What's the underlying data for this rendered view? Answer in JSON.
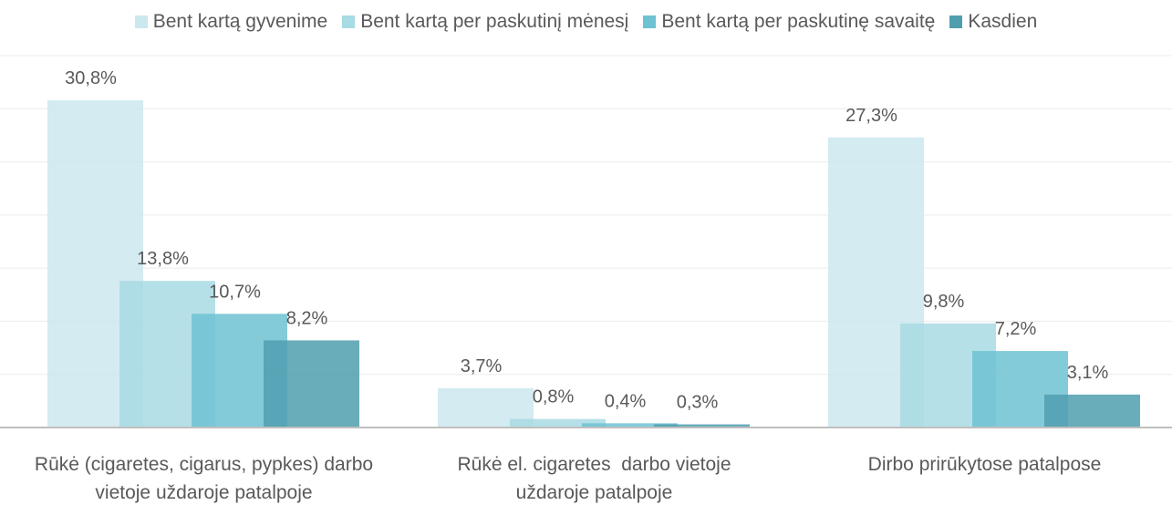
{
  "chart_data": {
    "type": "bar",
    "categories": [
      "Rūkė (cigaretes, cigarus, pypkes) darbo vietoje uždaroje patalpoje",
      "Rūkė el. cigaretes  darbo vietoje uždaroje patalpoje",
      "Dirbo prirūkytose patalpose"
    ],
    "series": [
      {
        "name": "Bent kartą gyvenime",
        "color": "#cbe8ee",
        "values": [
          30.8,
          3.7,
          27.3
        ],
        "value_labels": [
          "30,8%",
          "3,7%",
          "27,3%"
        ]
      },
      {
        "name": "Bent kartą per paskutinį mėnesį",
        "color": "#a8dbe4",
        "values": [
          13.8,
          0.8,
          9.8
        ],
        "value_labels": [
          "13,8%",
          "0,8%",
          "9,8%"
        ]
      },
      {
        "name": "Bent kartą per paskutinę savaitę",
        "color": "#6fc2d2",
        "values": [
          10.7,
          0.4,
          7.2
        ],
        "value_labels": [
          "10,7%",
          "0,4%",
          "7,2%"
        ]
      },
      {
        "name": "Kasdien",
        "color": "#4f9faf",
        "values": [
          8.2,
          0.3,
          3.1
        ],
        "value_labels": [
          "8,2%",
          "0,3%",
          "3,1%"
        ]
      }
    ],
    "ylim": [
      0,
      35
    ],
    "yticks": [
      0,
      5,
      10,
      15,
      20,
      25,
      30,
      35
    ],
    "grid": true,
    "legend": "top"
  }
}
